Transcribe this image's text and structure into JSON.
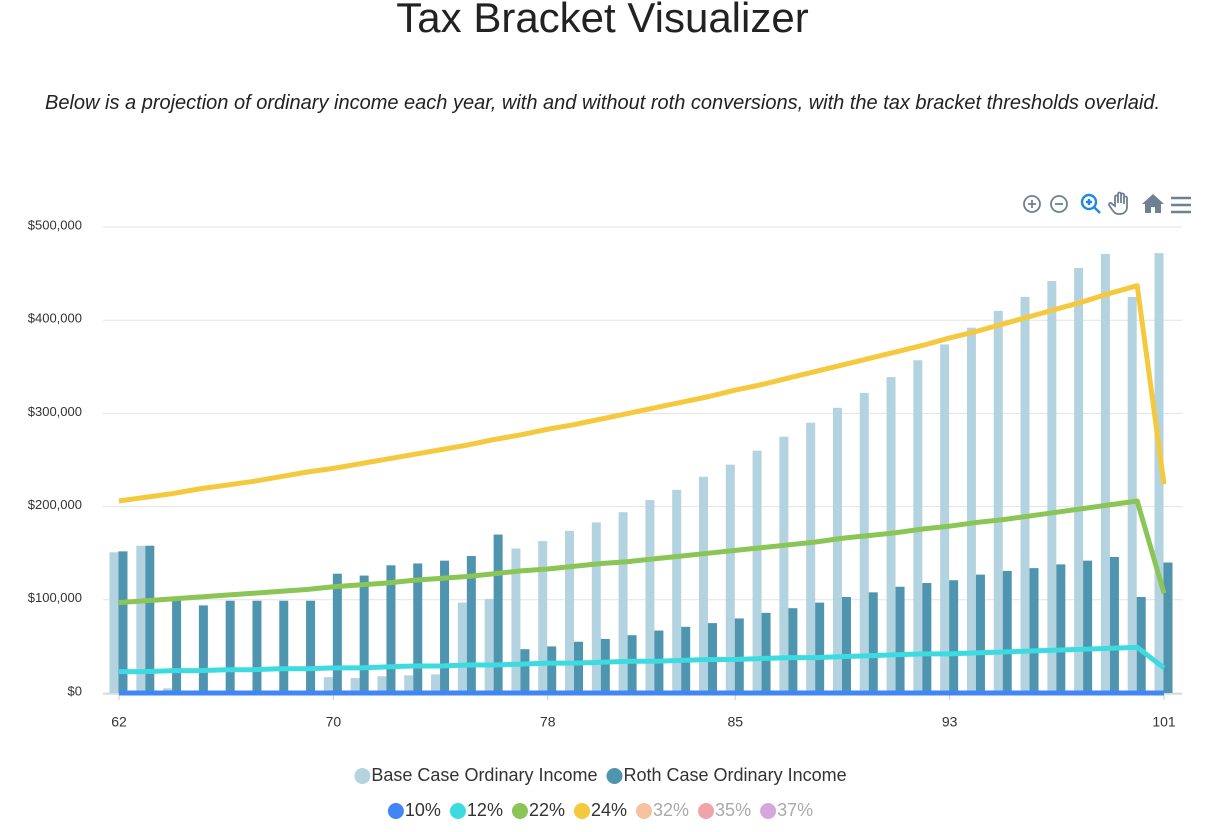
{
  "chart_data": {
    "type": "bar",
    "title": "Tax Bracket Visualizer",
    "subtitle": "Below is a projection of ordinary income each year, with and without roth conversions, with the tax bracket thresholds overlaid.",
    "x": [
      62,
      63,
      64,
      65,
      66,
      67,
      68,
      69,
      70,
      71,
      72,
      73,
      74,
      75,
      76,
      77,
      78,
      79,
      80,
      81,
      82,
      83,
      84,
      85,
      86,
      87,
      88,
      89,
      90,
      91,
      92,
      93,
      94,
      95,
      96,
      97,
      98,
      99,
      100,
      101
    ],
    "xlim": [
      62,
      101
    ],
    "xticks": [
      62,
      70,
      78,
      85,
      93,
      101
    ],
    "ylim": [
      0,
      500000
    ],
    "yticks": [
      {
        "value": 0,
        "label": "$0"
      },
      {
        "value": 100000,
        "label": "$100,000"
      },
      {
        "value": 200000,
        "label": "$200,000"
      },
      {
        "value": 300000,
        "label": "$300,000"
      },
      {
        "value": 400000,
        "label": "$400,000"
      },
      {
        "value": 500000,
        "label": "$500,000"
      }
    ],
    "grid": true,
    "series": [
      {
        "name": "Base Case Ordinary Income",
        "type": "bar",
        "color": "#b4d3e0",
        "values": [
          151000,
          158000,
          5000,
          0,
          0,
          0,
          0,
          0,
          17000,
          16000,
          18000,
          19000,
          20000,
          97000,
          101000,
          155000,
          163000,
          174000,
          183000,
          194000,
          207000,
          218000,
          232000,
          245000,
          260000,
          275000,
          290000,
          306000,
          322000,
          339000,
          357000,
          374000,
          392000,
          410000,
          425000,
          442000,
          456000,
          471000,
          425000,
          472000
        ]
      },
      {
        "name": "Roth Case Ordinary Income",
        "type": "bar",
        "color": "#4f95b0",
        "values": [
          152000,
          158000,
          100000,
          94000,
          99000,
          99000,
          99000,
          99000,
          128000,
          126000,
          137000,
          139000,
          142000,
          147000,
          170000,
          47000,
          50000,
          55000,
          58000,
          62000,
          67000,
          71000,
          75000,
          80000,
          86000,
          91000,
          97000,
          103000,
          108000,
          114000,
          118000,
          121000,
          127000,
          131000,
          134000,
          138000,
          142000,
          146000,
          103000,
          140000
        ]
      },
      {
        "name": "10%",
        "type": "line",
        "color": "#4285f4",
        "values": [
          0,
          0,
          0,
          0,
          0,
          0,
          0,
          0,
          0,
          0,
          0,
          0,
          0,
          0,
          0,
          0,
          0,
          0,
          0,
          0,
          0,
          0,
          0,
          0,
          0,
          0,
          0,
          0,
          0,
          0,
          0,
          0,
          0,
          0,
          0,
          0,
          0,
          0,
          0,
          0
        ]
      },
      {
        "name": "12%",
        "type": "line",
        "color": "#3cdbe0",
        "values": [
          23000,
          23000,
          24000,
          24000,
          25000,
          25000,
          26000,
          26000,
          27000,
          27000,
          28000,
          29000,
          29000,
          30000,
          30000,
          31000,
          32000,
          32000,
          33000,
          34000,
          34000,
          35000,
          36000,
          36000,
          37000,
          38000,
          38000,
          39000,
          40000,
          41000,
          42000,
          42000,
          43000,
          44000,
          45000,
          46000,
          47000,
          48000,
          49000,
          27000
        ]
      },
      {
        "name": "22%",
        "type": "line",
        "color": "#8bc556",
        "values": [
          97000,
          99000,
          101000,
          103000,
          105000,
          107000,
          109000,
          111000,
          114000,
          116000,
          118000,
          121000,
          123000,
          125000,
          128000,
          131000,
          133000,
          136000,
          139000,
          141000,
          144000,
          147000,
          150000,
          153000,
          156000,
          159000,
          162000,
          166000,
          169000,
          172000,
          176000,
          179000,
          183000,
          186000,
          190000,
          194000,
          198000,
          202000,
          206000,
          107000
        ]
      },
      {
        "name": "24%",
        "type": "line",
        "color": "#f4c93e",
        "values": [
          206000,
          210000,
          214000,
          219000,
          223000,
          227000,
          232000,
          237000,
          241000,
          246000,
          251000,
          256000,
          261000,
          266000,
          272000,
          277000,
          283000,
          288000,
          294000,
          300000,
          306000,
          312000,
          318000,
          325000,
          331000,
          338000,
          345000,
          352000,
          359000,
          366000,
          373000,
          381000,
          388000,
          396000,
          404000,
          412000,
          420000,
          429000,
          437000,
          224000
        ]
      },
      {
        "name": "32%",
        "type": "line",
        "color": "#f5c3a0",
        "hidden": true
      },
      {
        "name": "35%",
        "type": "line",
        "color": "#f0a3a8",
        "hidden": true
      },
      {
        "name": "37%",
        "type": "line",
        "color": "#d4a8dc",
        "hidden": true
      }
    ]
  }
}
